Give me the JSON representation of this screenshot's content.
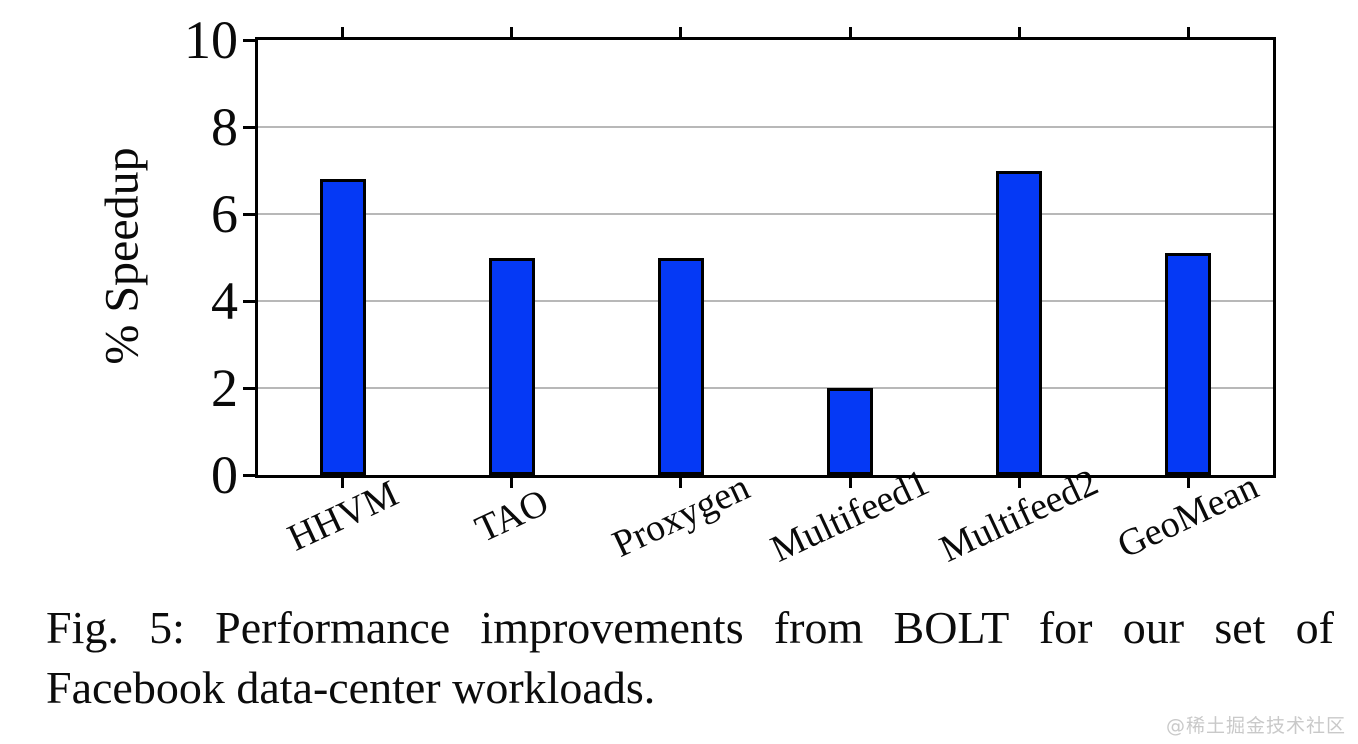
{
  "figure": {
    "caption_line1": "Fig. 5: Performance improvements from BOLT for our set of",
    "caption_line2": "Facebook data-center workloads.",
    "watermark": "@稀土掘金技术社区"
  },
  "chart_data": {
    "type": "bar",
    "categories": [
      "HHVM",
      "TAO",
      "Proxygen",
      "Multifeed1",
      "Multifeed2",
      "GeoMean"
    ],
    "values": [
      6.8,
      5.0,
      5.0,
      2.0,
      7.0,
      5.1
    ],
    "title": "",
    "xlabel": "",
    "ylabel": "% Speedup",
    "ylim": [
      0,
      10
    ],
    "yticks": [
      0,
      2,
      4,
      6,
      8,
      10
    ],
    "grid": true,
    "legend": "none",
    "bar_color": "#0539f5",
    "bar_border_color": "#000000",
    "grid_color": "#b8b8b8",
    "axis_color": "#000000"
  }
}
